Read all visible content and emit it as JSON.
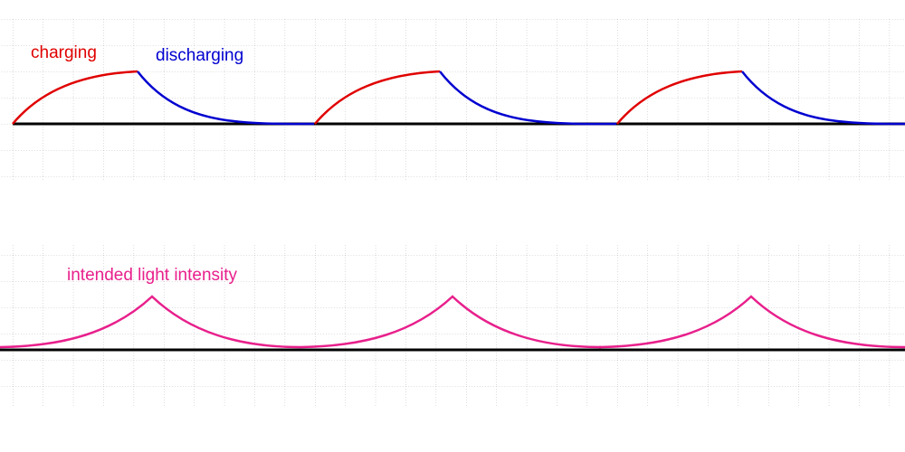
{
  "labels": {
    "charging": "charging",
    "discharging": "discharging",
    "intensity": "intended light intensity"
  }
}
